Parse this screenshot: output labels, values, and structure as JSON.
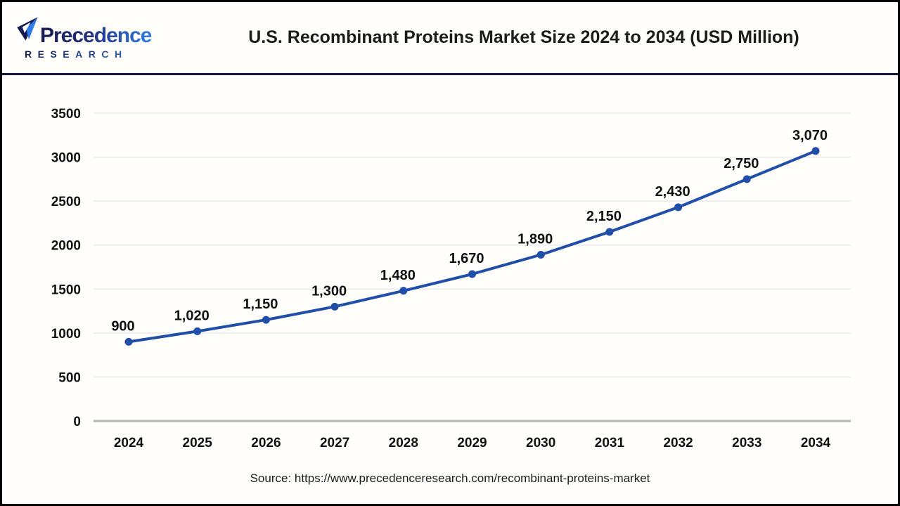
{
  "header": {
    "logo": {
      "brand": "Precedence",
      "sub": "RESEARCH",
      "brand_color_start": "#151a52",
      "brand_color_end": "#2e7ce8"
    },
    "title": "U.S. Recombinant Proteins Market Size 2024 to 2034 (USD Million)"
  },
  "chart_data": {
    "type": "line",
    "title": "U.S. Recombinant Proteins Market Size 2024 to 2034 (USD Million)",
    "categories": [
      "2024",
      "2025",
      "2026",
      "2027",
      "2028",
      "2029",
      "2030",
      "2031",
      "2032",
      "2033",
      "2034"
    ],
    "values": [
      900,
      1020,
      1150,
      1300,
      1480,
      1670,
      1890,
      2150,
      2430,
      2750,
      3070
    ],
    "data_labels": [
      "900",
      "1,020",
      "1,150",
      "1,300",
      "1,480",
      "1,670",
      "1,890",
      "2,150",
      "2,430",
      "2,750",
      "3,070"
    ],
    "xlabel": "",
    "ylabel": "",
    "ylim": [
      0,
      3500
    ],
    "ytick_step": 500,
    "grid": true,
    "legend": "none",
    "line_color": "#1f4fa8",
    "marker": "circle",
    "gridline_color": "#eaeaea",
    "axis_line_color": "#b5b5b5",
    "tick_label_color": "#111111"
  },
  "footer": {
    "source": "Source: https://www.precedenceresearch.com/recombinant-proteins-market"
  }
}
